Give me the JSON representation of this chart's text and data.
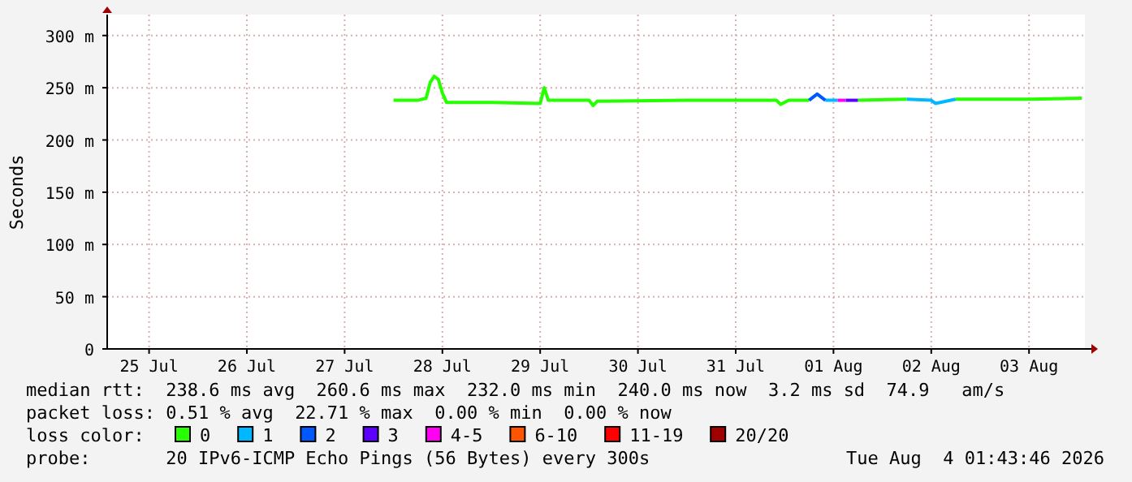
{
  "chart_data": {
    "type": "line",
    "ylabel": "Seconds",
    "legend_title": "loss color:",
    "legend": "bottom",
    "grid": true,
    "marker": "none",
    "line_style": "solid",
    "xlim": [
      "2026-07-25T01:43",
      "2026-08-04T01:43"
    ],
    "xticks": [
      {
        "value": "2026-07-25T12:00",
        "label": "25 Jul"
      },
      {
        "value": "2026-07-26T12:00",
        "label": "26 Jul"
      },
      {
        "value": "2026-07-27T12:00",
        "label": "27 Jul"
      },
      {
        "value": "2026-07-28T12:00",
        "label": "28 Jul"
      },
      {
        "value": "2026-07-29T12:00",
        "label": "29 Jul"
      },
      {
        "value": "2026-07-30T12:00",
        "label": "30 Jul"
      },
      {
        "value": "2026-07-31T12:00",
        "label": "31 Jul"
      },
      {
        "value": "2026-08-01T12:00",
        "label": "01 Aug"
      },
      {
        "value": "2026-08-02T12:00",
        "label": "02 Aug"
      },
      {
        "value": "2026-08-03T12:00",
        "label": "03 Aug"
      }
    ],
    "ylim": [
      0,
      320
    ],
    "yticks": [
      0,
      {
        "value": 50,
        "label": "50 m"
      },
      {
        "value": 100,
        "label": "100 m"
      },
      {
        "value": 150,
        "label": "150 m"
      },
      {
        "value": 200,
        "label": "200 m"
      },
      {
        "value": 250,
        "label": "250 m"
      },
      {
        "value": 300,
        "label": "300 m"
      }
    ],
    "x": [
      "2026-07-28T00:00",
      "2026-07-28T06:00",
      "2026-07-28T08:00",
      "2026-07-28T09:00",
      "2026-07-28T10:00",
      "2026-07-28T11:00",
      "2026-07-28T12:00",
      "2026-07-28T13:00",
      "2026-07-29T00:00",
      "2026-07-29T12:00",
      "2026-07-29T13:00",
      "2026-07-29T14:00",
      "2026-07-30T00:00",
      "2026-07-30T01:00",
      "2026-07-30T02:00",
      "2026-07-31T00:00",
      "2026-07-31T22:00",
      "2026-07-31T23:00",
      "2026-08-01T01:00",
      "2026-08-01T06:00",
      "2026-08-01T08:00",
      "2026-08-01T10:00",
      "2026-08-01T13:00",
      "2026-08-01T15:00",
      "2026-08-01T18:00",
      "2026-08-02T06:00",
      "2026-08-02T12:00",
      "2026-08-02T13:00",
      "2026-08-02T18:00",
      "2026-08-03T12:00",
      "2026-08-04T01:00"
    ],
    "series": [
      {
        "name": "0",
        "color": "#26ff00",
        "values": [
          238,
          238,
          240,
          255,
          261,
          258,
          245,
          236,
          236,
          235,
          250,
          238,
          238,
          233,
          237,
          238,
          238,
          234,
          238,
          238,
          null,
          null,
          null,
          null,
          238,
          239,
          null,
          null,
          239,
          239,
          240
        ]
      },
      {
        "name": "1",
        "color": "#00b8ff",
        "values": [
          null,
          null,
          null,
          null,
          null,
          null,
          null,
          null,
          null,
          null,
          null,
          null,
          null,
          null,
          null,
          null,
          null,
          null,
          null,
          null,
          null,
          238,
          238,
          null,
          null,
          239,
          238,
          235,
          239,
          null,
          null
        ]
      },
      {
        "name": "2",
        "color": "#0059ff",
        "values": [
          null,
          null,
          null,
          null,
          null,
          null,
          null,
          null,
          null,
          null,
          null,
          null,
          null,
          null,
          null,
          null,
          null,
          null,
          null,
          238,
          244,
          238,
          null,
          null,
          null,
          null,
          null,
          null,
          null,
          null,
          null
        ]
      },
      {
        "name": "3",
        "color": "#5e00ff",
        "values": [
          null,
          null,
          null,
          null,
          null,
          null,
          null,
          null,
          null,
          null,
          null,
          null,
          null,
          null,
          null,
          null,
          null,
          null,
          null,
          null,
          null,
          null,
          null,
          238,
          238,
          null,
          null,
          null,
          null,
          null,
          null
        ]
      },
      {
        "name": "4-5",
        "color": "#ff00f2",
        "values": [
          null,
          null,
          null,
          null,
          null,
          null,
          null,
          null,
          null,
          null,
          null,
          null,
          null,
          null,
          null,
          null,
          null,
          null,
          null,
          null,
          null,
          null,
          238,
          238,
          null,
          null,
          null,
          null,
          null,
          null,
          null
        ]
      },
      {
        "name": "6-10",
        "color": "#ff5500",
        "values": [
          null,
          null,
          null,
          null,
          null,
          null,
          null,
          null,
          null,
          null,
          null,
          null,
          null,
          null,
          null,
          null,
          null,
          null,
          null,
          null,
          null,
          null,
          null,
          null,
          null,
          null,
          null,
          null,
          null,
          null,
          null
        ]
      },
      {
        "name": "11-19",
        "color": "#ff0000",
        "values": [
          null,
          null,
          null,
          null,
          null,
          null,
          null,
          null,
          null,
          null,
          null,
          null,
          null,
          null,
          null,
          null,
          null,
          null,
          null,
          null,
          null,
          null,
          null,
          null,
          null,
          null,
          null,
          null,
          null,
          null,
          null
        ]
      },
      {
        "name": "20/20",
        "color": "#a10000",
        "values": [
          null,
          null,
          null,
          null,
          null,
          null,
          null,
          null,
          null,
          null,
          null,
          null,
          null,
          null,
          null,
          null,
          null,
          null,
          null,
          null,
          null,
          null,
          null,
          null,
          null,
          null,
          null,
          null,
          null,
          null,
          null
        ]
      }
    ],
    "annotations": [
      "median rtt:  238.6 ms avg  260.6 ms max  232.0 ms min  240.0 ms now  3.2 ms sd  74.9   am/s",
      "packet loss: 0.51 % avg  22.71 % max  0.00 % min  0.00 % now",
      "probe:       20 IPv6-ICMP Echo Pings (56 Bytes) every 300s",
      "Tue Aug  4 01:43:46 2026"
    ]
  }
}
